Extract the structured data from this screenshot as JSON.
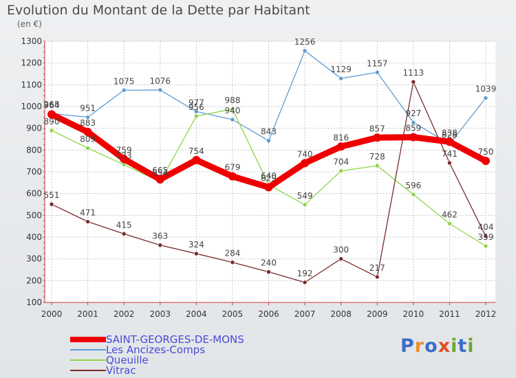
{
  "title": "Evolution du Montant de la Dette par Habitant",
  "subtitle": "(en €)",
  "logo": {
    "text": "Proxiti",
    "letters": [
      "P",
      "r",
      "o",
      "x",
      "i",
      "t",
      "i"
    ],
    "colors": [
      "#3a6ec8",
      "#e8902a",
      "#3a6ec8",
      "#e34c26",
      "#6aa832",
      "#3a6ec8",
      "#6aa832"
    ]
  },
  "chart_data": {
    "type": "line",
    "title": "Evolution du Montant de la Dette par Habitant",
    "subtitle": "(en €)",
    "xlabel": "",
    "ylabel": "",
    "x": [
      "2000",
      "2001",
      "2002",
      "2003",
      "2004",
      "2005",
      "2006",
      "2007",
      "2008",
      "2009",
      "2010",
      "2011",
      "2012"
    ],
    "ylim": [
      100,
      1300
    ],
    "yticks": [
      100,
      200,
      300,
      400,
      500,
      600,
      700,
      800,
      900,
      1000,
      1100,
      1200,
      1300
    ],
    "grid": true,
    "legend_position": "bottom-left",
    "series": [
      {
        "name": "SAINT-GEORGES-DE-MONS",
        "color": "#ee0000",
        "thick": true,
        "values": [
          964,
          883,
          759,
          665,
          754,
          679,
          629,
          740,
          816,
          857,
          859,
          838,
          750
        ]
      },
      {
        "name": "Les Ancizes-Comps",
        "color": "#5b9bd5",
        "thick": false,
        "values": [
          968,
          951,
          1075,
          1076,
          977,
          940,
          843,
          1256,
          1129,
          1157,
          927,
          828,
          1039
        ]
      },
      {
        "name": "Queuille",
        "color": "#8fd44a",
        "thick": false,
        "values": [
          890,
          809,
          733,
          654,
          956,
          988,
          640,
          549,
          704,
          728,
          596,
          462,
          359
        ]
      },
      {
        "name": "Vitrac",
        "color": "#7a2a2a",
        "thick": false,
        "values": [
          551,
          471,
          415,
          363,
          324,
          284,
          240,
          192,
          300,
          217,
          1113,
          741,
          404
        ]
      }
    ]
  }
}
